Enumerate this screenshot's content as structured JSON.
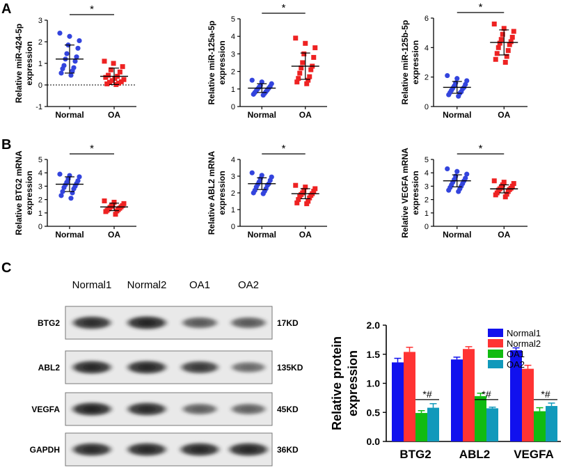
{
  "panels": {
    "A": "A",
    "B": "B",
    "C": "C"
  },
  "colors": {
    "normal": "#3344dd",
    "oa": "#ee2222",
    "normal1": "#1111ee",
    "normal2": "#ff3333",
    "oa1": "#11bb11",
    "oa2": "#1199bb"
  },
  "blot": {
    "column_labels": [
      "Normal1",
      "Normal2",
      "OA1",
      "OA2"
    ],
    "rows": [
      {
        "label": "BTG2",
        "size": "17KD",
        "intensity": [
          0.88,
          0.95,
          0.55,
          0.55
        ]
      },
      {
        "label": "ABL2",
        "size": "135KD",
        "intensity": [
          0.92,
          0.92,
          0.78,
          0.42
        ]
      },
      {
        "label": "VEGFA",
        "size": "45KD",
        "intensity": [
          0.95,
          0.9,
          0.5,
          0.48
        ]
      },
      {
        "label": "GAPDH",
        "size": "36KD",
        "intensity": [
          0.9,
          0.92,
          0.92,
          0.92
        ]
      }
    ]
  },
  "chart_data": [
    {
      "id": "mir424",
      "type": "scatter",
      "panel": "A",
      "ylabel_lines": [
        "Relative miR-424-5p",
        "expression"
      ],
      "categories": [
        "Normal",
        "OA"
      ],
      "ylim": [
        -1,
        3
      ],
      "yticks": [
        -1,
        0,
        1,
        2,
        3
      ],
      "zero_line": true,
      "series": [
        {
          "name": "Normal",
          "mean": 1.2,
          "sd": 0.65,
          "values": [
            2.4,
            2.25,
            2.05,
            1.85,
            1.7,
            1.45,
            1.3,
            1.2,
            1.1,
            0.9,
            0.8,
            0.75,
            0.65,
            0.55,
            0.45
          ]
        },
        {
          "name": "OA",
          "mean": 0.4,
          "sd": 0.38,
          "values": [
            1.1,
            1.0,
            0.85,
            0.7,
            0.6,
            0.45,
            0.4,
            0.35,
            0.3,
            0.25,
            0.2,
            0.15,
            0.12,
            0.08,
            0.05,
            0.02
          ]
        }
      ],
      "significance": "*"
    },
    {
      "id": "mir125a",
      "type": "scatter",
      "panel": "A",
      "ylabel_lines": [
        "Relative miR-125a-5p",
        "expression"
      ],
      "categories": [
        "Normal",
        "OA"
      ],
      "ylim": [
        0,
        5
      ],
      "yticks": [
        0,
        1,
        2,
        3,
        4,
        5
      ],
      "zero_line": false,
      "series": [
        {
          "name": "Normal",
          "mean": 1.05,
          "sd": 0.25,
          "values": [
            1.5,
            1.4,
            1.3,
            1.2,
            1.15,
            1.1,
            1.05,
            1.0,
            0.95,
            0.9,
            0.85,
            0.8,
            0.75,
            0.7,
            0.65
          ]
        },
        {
          "name": "OA",
          "mean": 2.3,
          "sd": 0.75,
          "values": [
            3.9,
            3.6,
            3.35,
            3.0,
            2.8,
            2.5,
            2.3,
            2.2,
            2.1,
            1.9,
            1.7,
            1.6,
            1.5,
            1.4,
            1.3
          ]
        }
      ],
      "significance": "*"
    },
    {
      "id": "mir125b",
      "type": "scatter",
      "panel": "A",
      "ylabel_lines": [
        "Relative miR-125b-5p",
        "expression"
      ],
      "categories": [
        "Normal",
        "OA"
      ],
      "ylim": [
        0,
        6
      ],
      "yticks": [
        0,
        2,
        4,
        6
      ],
      "zero_line": false,
      "series": [
        {
          "name": "Normal",
          "mean": 1.3,
          "sd": 0.4,
          "values": [
            2.1,
            1.9,
            1.75,
            1.6,
            1.5,
            1.4,
            1.3,
            1.25,
            1.2,
            1.1,
            1.0,
            0.95,
            0.9,
            0.8,
            0.7
          ]
        },
        {
          "name": "OA",
          "mean": 4.35,
          "sd": 0.85,
          "values": [
            5.6,
            5.3,
            5.1,
            4.9,
            4.7,
            4.55,
            4.4,
            4.3,
            4.2,
            4.0,
            3.8,
            3.6,
            3.4,
            3.2,
            3.0
          ]
        }
      ],
      "significance": "*"
    },
    {
      "id": "btg2",
      "type": "scatter",
      "panel": "B",
      "ylabel_lines": [
        "Relative BTG2 mRNA",
        "expression"
      ],
      "categories": [
        "Normal",
        "OA"
      ],
      "ylim": [
        0,
        5
      ],
      "yticks": [
        0,
        1,
        2,
        3,
        4,
        5
      ],
      "zero_line": false,
      "series": [
        {
          "name": "Normal",
          "mean": 3.15,
          "sd": 0.55,
          "values": [
            3.9,
            3.8,
            3.7,
            3.55,
            3.4,
            3.3,
            3.2,
            3.1,
            3.0,
            2.9,
            2.8,
            2.6,
            2.5,
            2.3,
            2.1
          ]
        },
        {
          "name": "OA",
          "mean": 1.45,
          "sd": 0.28,
          "values": [
            1.9,
            1.8,
            1.7,
            1.6,
            1.55,
            1.5,
            1.45,
            1.4,
            1.35,
            1.3,
            1.25,
            1.2,
            1.15,
            1.1,
            0.9
          ]
        }
      ],
      "significance": "*"
    },
    {
      "id": "abl2",
      "type": "scatter",
      "panel": "B",
      "ylabel_lines": [
        "Relative ABL2 mRNA",
        "expression"
      ],
      "categories": [
        "Normal",
        "OA"
      ],
      "ylim": [
        0,
        4
      ],
      "yticks": [
        0,
        1,
        2,
        3,
        4
      ],
      "zero_line": false,
      "series": [
        {
          "name": "Normal",
          "mean": 2.55,
          "sd": 0.35,
          "values": [
            3.2,
            3.05,
            2.95,
            2.85,
            2.75,
            2.65,
            2.55,
            2.5,
            2.45,
            2.35,
            2.25,
            2.15,
            2.1,
            2.0,
            1.95
          ]
        },
        {
          "name": "OA",
          "mean": 1.95,
          "sd": 0.3,
          "values": [
            2.45,
            2.35,
            2.25,
            2.15,
            2.1,
            2.0,
            1.95,
            1.9,
            1.85,
            1.8,
            1.7,
            1.6,
            1.5,
            1.4,
            1.35
          ]
        }
      ],
      "significance": "*"
    },
    {
      "id": "vegfa",
      "type": "scatter",
      "panel": "B",
      "ylabel_lines": [
        "Relative VEGFA mRNA",
        "expression"
      ],
      "categories": [
        "Normal",
        "OA"
      ],
      "ylim": [
        0,
        5
      ],
      "yticks": [
        0,
        1,
        2,
        3,
        4,
        5
      ],
      "zero_line": false,
      "series": [
        {
          "name": "Normal",
          "mean": 3.4,
          "sd": 0.45,
          "values": [
            4.3,
            4.1,
            3.9,
            3.75,
            3.6,
            3.5,
            3.4,
            3.3,
            3.2,
            3.1,
            3.0,
            2.9,
            2.8,
            2.7,
            2.6
          ]
        },
        {
          "name": "OA",
          "mean": 2.8,
          "sd": 0.3,
          "values": [
            3.4,
            3.3,
            3.2,
            3.1,
            3.0,
            2.9,
            2.85,
            2.8,
            2.75,
            2.7,
            2.6,
            2.5,
            2.4,
            2.35,
            2.2
          ]
        }
      ],
      "significance": "*"
    },
    {
      "id": "protein",
      "type": "bar",
      "panel": "C",
      "ylabel_lines": [
        "Relative protein",
        "expression"
      ],
      "categories": [
        "BTG2",
        "ABL2",
        "VEGFA"
      ],
      "ylim": [
        0,
        2.0
      ],
      "yticks": [
        "0.0",
        "0.5",
        "1.0",
        "1.5",
        "2.0"
      ],
      "series": [
        {
          "name": "Normal1",
          "values": [
            1.36,
            1.41,
            1.57
          ],
          "errors": [
            0.07,
            0.04,
            0.04
          ]
        },
        {
          "name": "Normal2",
          "values": [
            1.54,
            1.59,
            1.25
          ],
          "errors": [
            0.08,
            0.04,
            0.06
          ]
        },
        {
          "name": "OA1",
          "values": [
            0.49,
            0.78,
            0.52
          ],
          "errors": [
            0.04,
            0.05,
            0.06
          ]
        },
        {
          "name": "OA2",
          "values": [
            0.58,
            0.57,
            0.61
          ],
          "errors": [
            0.07,
            0.02,
            0.05
          ]
        }
      ],
      "annotation": "*#"
    }
  ]
}
